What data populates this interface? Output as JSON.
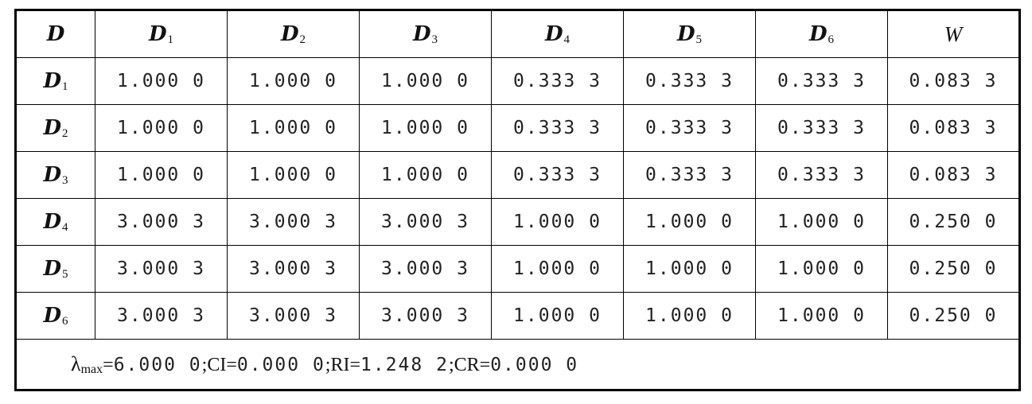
{
  "table": {
    "header": {
      "corner": "D",
      "columns": [
        {
          "base": "D",
          "sub": "1"
        },
        {
          "base": "D",
          "sub": "2"
        },
        {
          "base": "D",
          "sub": "3"
        },
        {
          "base": "D",
          "sub": "4"
        },
        {
          "base": "D",
          "sub": "5"
        },
        {
          "base": "D",
          "sub": "6"
        }
      ],
      "weight": "W"
    },
    "rows": [
      {
        "label": {
          "base": "D",
          "sub": "1"
        },
        "values": [
          "1.000 0",
          "1.000 0",
          "1.000 0",
          "0.333 3",
          "0.333 3",
          "0.333 3"
        ],
        "weight": "0.083 3"
      },
      {
        "label": {
          "base": "D",
          "sub": "2"
        },
        "values": [
          "1.000 0",
          "1.000 0",
          "1.000 0",
          "0.333 3",
          "0.333 3",
          "0.333 3"
        ],
        "weight": "0.083 3"
      },
      {
        "label": {
          "base": "D",
          "sub": "3"
        },
        "values": [
          "1.000 0",
          "1.000 0",
          "1.000 0",
          "0.333 3",
          "0.333 3",
          "0.333 3"
        ],
        "weight": "0.083 3"
      },
      {
        "label": {
          "base": "D",
          "sub": "4"
        },
        "values": [
          "3.000 3",
          "3.000 3",
          "3.000 3",
          "1.000 0",
          "1.000 0",
          "1.000 0"
        ],
        "weight": "0.250 0"
      },
      {
        "label": {
          "base": "D",
          "sub": "5"
        },
        "values": [
          "3.000 3",
          "3.000 3",
          "3.000 3",
          "1.000 0",
          "1.000 0",
          "1.000 0"
        ],
        "weight": "0.250 0"
      },
      {
        "label": {
          "base": "D",
          "sub": "6"
        },
        "values": [
          "3.000 3",
          "3.000 3",
          "3.000 3",
          "1.000 0",
          "1.000 0",
          "1.000 0"
        ],
        "weight": "0.250 0"
      }
    ],
    "footer": {
      "lambda_symbol": "λ",
      "lambda_sub": "max",
      "lambda_eq": "=",
      "lambda_value": "6.000 0",
      "sep1": ";",
      "ci_label": "CI",
      "ci_eq": "=",
      "ci_value": "0.000 0",
      "sep2": ";",
      "ri_label": "RI",
      "ri_eq": "=",
      "ri_value": "1.248 2",
      "sep3": ";",
      "cr_label": "CR",
      "cr_eq": "=",
      "cr_value": "0.000 0"
    }
  }
}
